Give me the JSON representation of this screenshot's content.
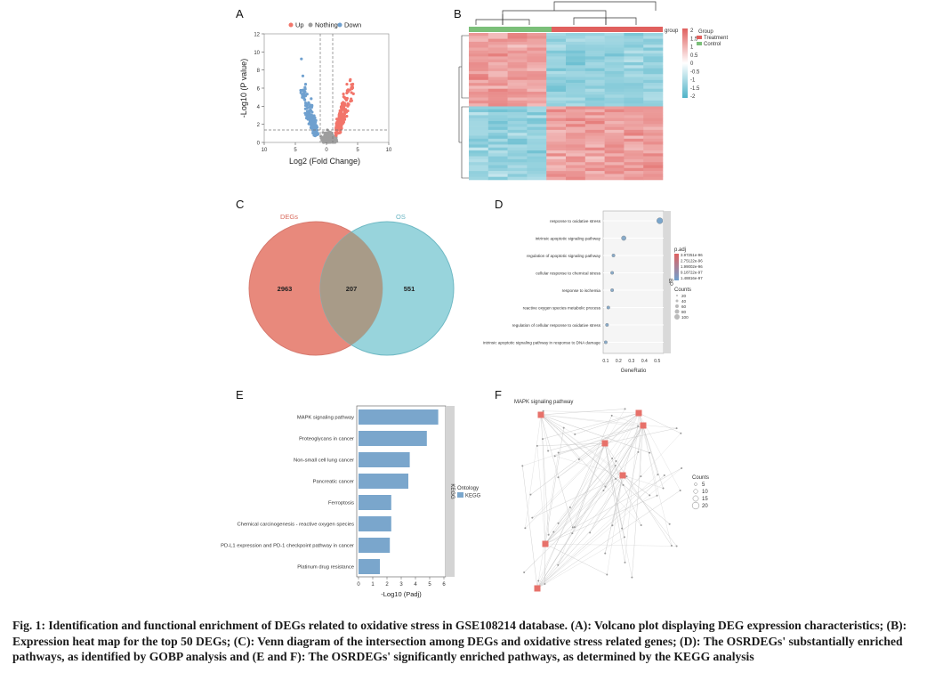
{
  "panels": {
    "A": {
      "letter": "A",
      "legend": [
        "Up",
        "Nothing",
        "Down"
      ],
      "legend_colors": [
        "#f2756a",
        "#9e9e9e",
        "#6fa0cf"
      ],
      "ylabel": "-Log10 (P value)",
      "xlabel": "Log2 (Fold Change)",
      "yticks": [
        "0",
        "2",
        "4",
        "6",
        "8",
        "10",
        "12"
      ],
      "xticks": [
        "10",
        "5",
        "0",
        "5",
        "10"
      ]
    },
    "B": {
      "letter": "B",
      "legend_title": "Group",
      "legend_items": [
        "Treatment",
        "Control"
      ],
      "scale_ticks": [
        "2",
        "1.5",
        "1",
        "0.5",
        "0",
        "-0.5",
        "-1",
        "-1.5",
        "-2"
      ],
      "group_label": "group"
    },
    "C": {
      "letter": "C",
      "left_label": "DEGs",
      "right_label": "OS",
      "left_count": "2963",
      "overlap_count": "207",
      "right_count": "551"
    },
    "D": {
      "letter": "D",
      "terms": [
        "response to oxidative stress",
        "intrinsic apoptotic signaling pathway",
        "regulation of apoptotic signaling pathway",
        "cellular response to chemical stress",
        "response to ischemia",
        "reactive oxygen species metabolic process",
        "regulation of cellular response to oxidative stress",
        "intrinsic apoptotic signaling pathway in response to DNA damage"
      ],
      "xlabel": "GeneRatio",
      "xticks": [
        "0.1",
        "0.2",
        "0.3",
        "0.4",
        "0.5"
      ],
      "strip": "BP",
      "padj_title": "p.adj",
      "padj_ticks": [
        "3.97251e-96",
        "2.75122e-96",
        "1.99002e-96",
        "9.18722e-97",
        "1.48816e-97"
      ],
      "counts_title": "Counts",
      "counts": [
        "20",
        "40",
        "60",
        "80",
        "100"
      ]
    },
    "E": {
      "letter": "E",
      "pathways": [
        "MAPK signaling pathway",
        "Proteoglycans in cancer",
        "Non-small cell lung cancer",
        "Pancreatic cancer",
        "Ferroptosis",
        "Chemical carcinogenesis - reactive oxygen species",
        "PD-L1 expression and PD-1 checkpoint pathway in cancer",
        "Platinum drug resistance"
      ],
      "xlabel": "-Log10 (Padj)",
      "xticks": [
        "0",
        "1",
        "2",
        "3",
        "4",
        "5",
        "6"
      ],
      "strip": "KEGG",
      "legend_title": "Ontology",
      "legend_item": "KEGG"
    },
    "F": {
      "letter": "F",
      "counts_title": "Counts",
      "counts": [
        "5",
        "10",
        "15",
        "20"
      ],
      "hub_label": "MAPK signaling pathway"
    }
  },
  "chart_data": [
    {
      "type": "scatter",
      "panel": "A",
      "xlabel": "Log2 (Fold Change)",
      "ylabel": "-Log10 (P value)",
      "xlim": [
        -10,
        10
      ],
      "ylim": [
        0,
        12
      ],
      "series": [
        {
          "name": "Up",
          "color": "#f2756a"
        },
        {
          "name": "Nothing",
          "color": "#9e9e9e"
        },
        {
          "name": "Down",
          "color": "#6fa0cf"
        }
      ]
    },
    {
      "type": "scatter",
      "panel": "D",
      "xlabel": "GeneRatio",
      "categories": [
        "response to oxidative stress",
        "intrinsic apoptotic signaling pathway",
        "regulation of apoptotic signaling pathway",
        "cellular response to chemical stress",
        "response to ischemia",
        "reactive oxygen species metabolic process",
        "regulation of cellular response to oxidative stress",
        "intrinsic apoptotic signaling pathway in response to DNA damage"
      ],
      "x": [
        0.52,
        0.24,
        0.16,
        0.15,
        0.15,
        0.12,
        0.11,
        0.1
      ],
      "xlim": [
        0.08,
        0.55
      ]
    },
    {
      "type": "bar",
      "panel": "E",
      "orientation": "horizontal",
      "xlabel": "-Log10 (Padj)",
      "categories": [
        "MAPK signaling pathway",
        "Proteoglycans in cancer",
        "Non-small cell lung cancer",
        "Pancreatic cancer",
        "Ferroptosis",
        "Chemical carcinogenesis - reactive oxygen species",
        "PD-L1 expression and PD-1 checkpoint pathway in cancer",
        "Platinum drug resistance"
      ],
      "values": [
        5.6,
        4.8,
        3.6,
        3.5,
        2.3,
        2.3,
        2.2,
        1.5
      ],
      "xlim": [
        0,
        6
      ],
      "color": "#7aa6cc"
    }
  ],
  "caption": "Fig. 1: Identification and functional enrichment of DEGs related to oxidative stress in GSE108214 database. (A): Volcano plot displaying DEG expression characteristics; (B): Expression heat map for the top 50 DEGs; (C): Venn diagram of the intersection among DEGs and oxidative stress related genes; (D): The OSRDEGs' substantially enriched pathways, as identified by GOBP analysis and (E and F): The OSRDEGs' significantly enriched pathways, as determined by the KEGG analysis"
}
